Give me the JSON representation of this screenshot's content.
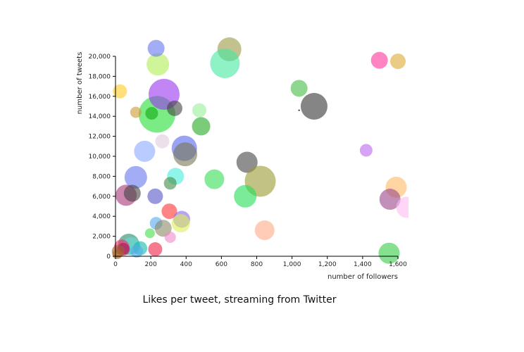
{
  "caption": "Likes per tweet, streaming from Twitter",
  "chart_data": {
    "type": "scatter",
    "title": "",
    "xlabel": "number of followers",
    "ylabel": "number of tweets",
    "xlim": [
      0,
      1650
    ],
    "ylim": [
      0,
      20000
    ],
    "x_ticks": [
      0,
      200,
      400,
      600,
      800,
      1000,
      1200,
      1400,
      1600
    ],
    "x_tick_labels": [
      "0",
      "200",
      "400",
      "600",
      "800",
      "1,000",
      "1,200",
      "1,400",
      "1,600"
    ],
    "y_ticks": [
      0,
      2000,
      4000,
      6000,
      8000,
      10000,
      12000,
      14000,
      16000,
      18000,
      20000
    ],
    "y_tick_labels": [
      "0",
      "2,000",
      "4,000",
      "6,000",
      "8,000",
      "10,000",
      "12,000",
      "14,000",
      "16,000",
      "18,000",
      "20,000"
    ],
    "grid": false,
    "points": [
      {
        "x": 235,
        "y": 14200,
        "size": 26,
        "color": "#22dd33"
      },
      {
        "x": 275,
        "y": 16200,
        "size": 22,
        "color": "#9933ee"
      },
      {
        "x": 645,
        "y": 20700,
        "size": 17,
        "color": "#999944"
      },
      {
        "x": 620,
        "y": 19300,
        "size": 21,
        "color": "#44e8a0"
      },
      {
        "x": 240,
        "y": 19200,
        "size": 16,
        "color": "#b0ee55"
      },
      {
        "x": 230,
        "y": 20800,
        "size": 12,
        "color": "#6677ee"
      },
      {
        "x": 1495,
        "y": 19600,
        "size": 12,
        "color": "#ff3399"
      },
      {
        "x": 1600,
        "y": 19500,
        "size": 11,
        "color": "#ddaa33"
      },
      {
        "x": 25,
        "y": 16500,
        "size": 10,
        "color": "#ffcc22"
      },
      {
        "x": 1040,
        "y": 16800,
        "size": 12,
        "color": "#44bb44"
      },
      {
        "x": 1125,
        "y": 15000,
        "size": 19,
        "color": "#333333"
      },
      {
        "x": 1040,
        "y": 14600,
        "size": 1,
        "color": "#000000"
      },
      {
        "x": 335,
        "y": 14800,
        "size": 11,
        "color": "#444444"
      },
      {
        "x": 475,
        "y": 14600,
        "size": 10,
        "color": "#99ee99"
      },
      {
        "x": 115,
        "y": 14400,
        "size": 8,
        "color": "#cc9933"
      },
      {
        "x": 205,
        "y": 14300,
        "size": 9,
        "color": "#11aa11"
      },
      {
        "x": 485,
        "y": 13000,
        "size": 13,
        "color": "#22aa22"
      },
      {
        "x": 265,
        "y": 11500,
        "size": 10,
        "color": "#ddccdd"
      },
      {
        "x": 165,
        "y": 10500,
        "size": 15,
        "color": "#88aaff"
      },
      {
        "x": 390,
        "y": 10800,
        "size": 18,
        "color": "#5566ee"
      },
      {
        "x": 395,
        "y": 10200,
        "size": 17,
        "color": "#777755"
      },
      {
        "x": 1420,
        "y": 10600,
        "size": 9,
        "color": "#bb66ee"
      },
      {
        "x": 745,
        "y": 9400,
        "size": 15,
        "color": "#444444"
      },
      {
        "x": 820,
        "y": 7500,
        "size": 22,
        "color": "#999933"
      },
      {
        "x": 560,
        "y": 7700,
        "size": 14,
        "color": "#33dd55"
      },
      {
        "x": 735,
        "y": 6000,
        "size": 16,
        "color": "#22dd55"
      },
      {
        "x": 340,
        "y": 8000,
        "size": 12,
        "color": "#44eedd"
      },
      {
        "x": 310,
        "y": 7300,
        "size": 9,
        "color": "#448844"
      },
      {
        "x": 115,
        "y": 7900,
        "size": 16,
        "color": "#6677ee"
      },
      {
        "x": 225,
        "y": 6000,
        "size": 11,
        "color": "#5555cc"
      },
      {
        "x": 60,
        "y": 6100,
        "size": 15,
        "color": "#aa3377"
      },
      {
        "x": 95,
        "y": 6300,
        "size": 12,
        "color": "#444444"
      },
      {
        "x": 1590,
        "y": 6900,
        "size": 15,
        "color": "#ffbb66"
      },
      {
        "x": 1555,
        "y": 5700,
        "size": 15,
        "color": "#994488"
      },
      {
        "x": 1650,
        "y": 4900,
        "size": 15,
        "color": "#ffbbee"
      },
      {
        "x": 305,
        "y": 4500,
        "size": 11,
        "color": "#ff3333"
      },
      {
        "x": 375,
        "y": 3700,
        "size": 12,
        "color": "#8866ee"
      },
      {
        "x": 370,
        "y": 3300,
        "size": 13,
        "color": "#ddee55"
      },
      {
        "x": 230,
        "y": 3300,
        "size": 9,
        "color": "#55aaee"
      },
      {
        "x": 270,
        "y": 2800,
        "size": 12,
        "color": "#888866"
      },
      {
        "x": 845,
        "y": 2600,
        "size": 14,
        "color": "#ffaa88"
      },
      {
        "x": 195,
        "y": 2300,
        "size": 7,
        "color": "#44dd44"
      },
      {
        "x": 310,
        "y": 1900,
        "size": 8,
        "color": "#ee88cc"
      },
      {
        "x": 75,
        "y": 1200,
        "size": 15,
        "color": "#228866"
      },
      {
        "x": 90,
        "y": 1000,
        "size": 13,
        "color": "#66dddd"
      },
      {
        "x": 35,
        "y": 900,
        "size": 11,
        "color": "#ff2266"
      },
      {
        "x": 225,
        "y": 700,
        "size": 10,
        "color": "#ee2244"
      },
      {
        "x": 140,
        "y": 800,
        "size": 10,
        "color": "#11bbaa"
      },
      {
        "x": 120,
        "y": 500,
        "size": 9,
        "color": "#55aaee"
      },
      {
        "x": 45,
        "y": 700,
        "size": 9,
        "color": "#aa1155"
      },
      {
        "x": 15,
        "y": 500,
        "size": 9,
        "color": "#996633"
      },
      {
        "x": 10,
        "y": 200,
        "size": 7,
        "color": "#aa6622"
      },
      {
        "x": 1550,
        "y": 300,
        "size": 15,
        "color": "#33cc44"
      }
    ]
  }
}
